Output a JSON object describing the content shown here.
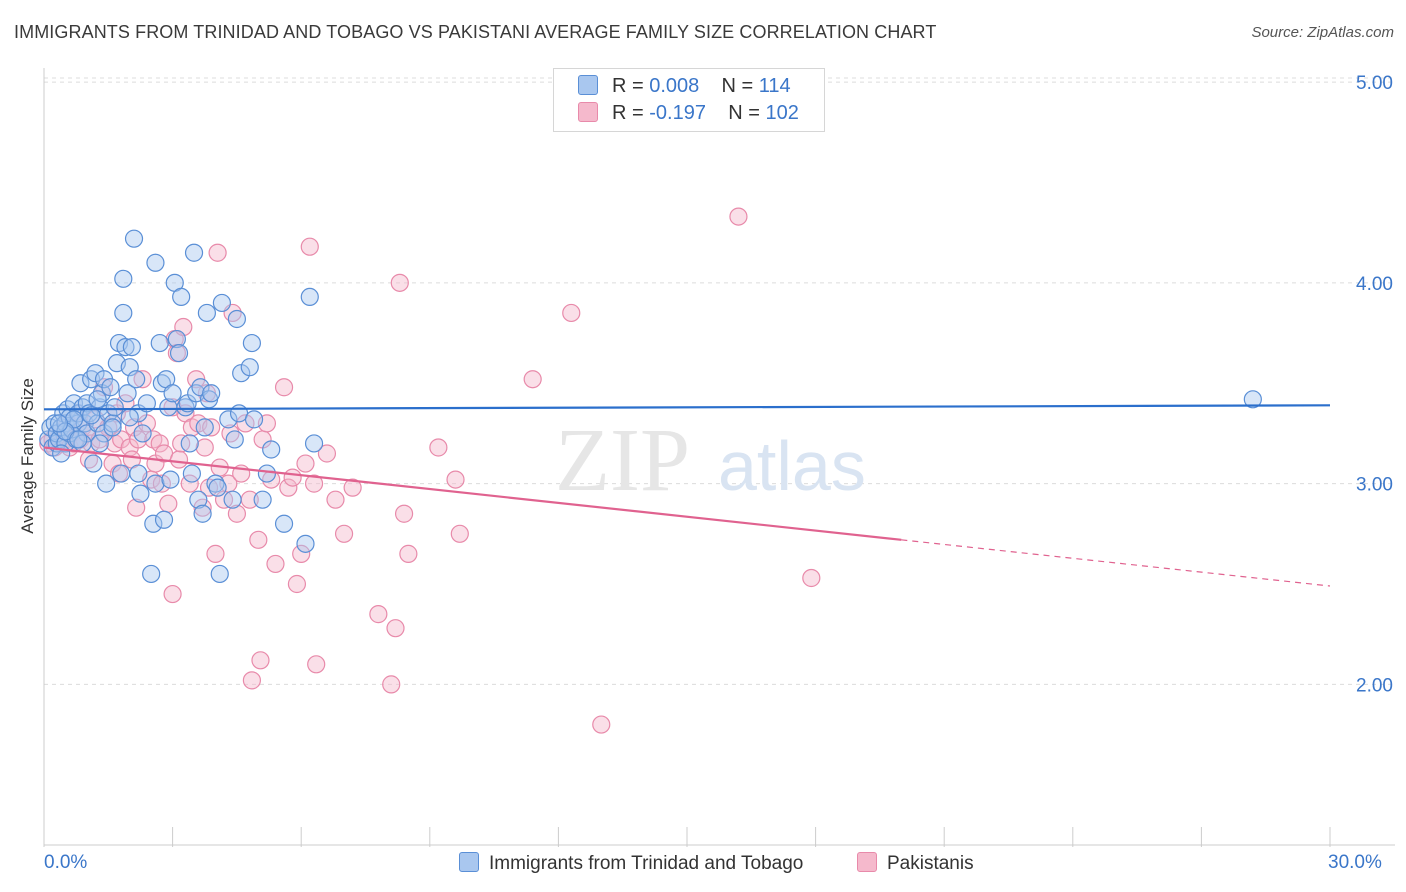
{
  "header": {
    "title": "IMMIGRANTS FROM TRINIDAD AND TOBAGO VS PAKISTANI AVERAGE FAMILY SIZE CORRELATION CHART",
    "source": "Source: ZipAtlas.com"
  },
  "legend": {
    "rows": [
      {
        "r_label": "R =",
        "r_value": "0.008",
        "n_label": "N =",
        "n_value": "114"
      },
      {
        "r_label": "R =",
        "r_value": "-0.197",
        "n_label": "N =",
        "n_value": "102"
      }
    ]
  },
  "watermark": {
    "zip": "ZIP",
    "atlas": "atlas"
  },
  "colors": {
    "blue_fill": "#a9c7ef",
    "blue_stroke": "#5a8fd6",
    "blue_line": "#2b6fcc",
    "pink_fill": "#f5b9cc",
    "pink_stroke": "#e88aaa",
    "pink_line": "#e0628f",
    "axis_text": "#3a76c9",
    "grid": "#dcdcdc"
  },
  "chart_data": {
    "type": "scatter",
    "title": "IMMIGRANTS FROM TRINIDAD AND TOBAGO VS PAKISTANI AVERAGE FAMILY SIZE CORRELATION CHART",
    "xlabel": "",
    "ylabel": "Average Family Size",
    "xlim": [
      0,
      30
    ],
    "ylim": [
      1.2,
      5.1
    ],
    "x_tick_labels": [
      "0.0%",
      "30.0%"
    ],
    "y_ticks": [
      2.0,
      3.0,
      4.0,
      5.0
    ],
    "y_tick_labels": [
      "2.00",
      "3.00",
      "4.00",
      "5.00"
    ],
    "grid": true,
    "legend_position": "top-center",
    "series": [
      {
        "name": "Immigrants from Trinidad and Tobago",
        "color": "#5a8fd6",
        "trend": {
          "x": [
            0,
            30
          ],
          "y": [
            3.37,
            3.39
          ]
        },
        "points": [
          [
            0.1,
            3.22
          ],
          [
            0.15,
            3.28
          ],
          [
            0.2,
            3.18
          ],
          [
            0.25,
            3.3
          ],
          [
            0.3,
            3.2
          ],
          [
            0.3,
            3.25
          ],
          [
            0.35,
            3.22
          ],
          [
            0.4,
            3.28
          ],
          [
            0.45,
            3.35
          ],
          [
            0.5,
            3.2
          ],
          [
            0.5,
            3.3
          ],
          [
            0.55,
            3.37
          ],
          [
            0.6,
            3.25
          ],
          [
            0.6,
            3.33
          ],
          [
            0.65,
            3.27
          ],
          [
            0.7,
            3.4
          ],
          [
            0.75,
            3.22
          ],
          [
            0.8,
            3.3
          ],
          [
            0.8,
            3.35
          ],
          [
            0.85,
            3.5
          ],
          [
            0.9,
            3.38
          ],
          [
            0.95,
            3.3
          ],
          [
            1.0,
            3.4
          ],
          [
            1.0,
            3.25
          ],
          [
            1.05,
            3.35
          ],
          [
            1.1,
            3.52
          ],
          [
            1.15,
            3.1
          ],
          [
            1.2,
            3.55
          ],
          [
            1.25,
            3.3
          ],
          [
            1.3,
            3.38
          ],
          [
            1.35,
            3.45
          ],
          [
            1.4,
            3.52
          ],
          [
            1.4,
            3.25
          ],
          [
            1.45,
            3.0
          ],
          [
            1.5,
            3.35
          ],
          [
            1.55,
            3.48
          ],
          [
            1.6,
            3.3
          ],
          [
            1.65,
            3.38
          ],
          [
            1.7,
            3.6
          ],
          [
            1.75,
            3.7
          ],
          [
            1.8,
            3.05
          ],
          [
            1.85,
            3.85
          ],
          [
            1.85,
            4.02
          ],
          [
            1.9,
            3.68
          ],
          [
            1.95,
            3.45
          ],
          [
            2.0,
            3.58
          ],
          [
            2.05,
            3.68
          ],
          [
            2.1,
            4.22
          ],
          [
            2.15,
            3.52
          ],
          [
            2.2,
            3.35
          ],
          [
            2.25,
            2.95
          ],
          [
            2.3,
            3.25
          ],
          [
            2.4,
            3.4
          ],
          [
            2.5,
            2.55
          ],
          [
            2.55,
            2.8
          ],
          [
            2.6,
            3.0
          ],
          [
            2.6,
            4.1
          ],
          [
            2.7,
            3.7
          ],
          [
            2.75,
            3.5
          ],
          [
            2.8,
            2.82
          ],
          [
            2.85,
            3.52
          ],
          [
            2.9,
            3.38
          ],
          [
            2.95,
            3.02
          ],
          [
            3.0,
            3.45
          ],
          [
            3.05,
            4.0
          ],
          [
            3.1,
            3.72
          ],
          [
            3.15,
            3.65
          ],
          [
            3.2,
            3.93
          ],
          [
            3.3,
            3.38
          ],
          [
            3.35,
            3.4
          ],
          [
            3.4,
            3.2
          ],
          [
            3.45,
            3.05
          ],
          [
            3.5,
            4.15
          ],
          [
            3.55,
            3.45
          ],
          [
            3.6,
            2.92
          ],
          [
            3.65,
            3.48
          ],
          [
            3.7,
            2.85
          ],
          [
            3.75,
            3.28
          ],
          [
            3.8,
            3.85
          ],
          [
            3.85,
            3.42
          ],
          [
            3.9,
            3.45
          ],
          [
            4.0,
            3.0
          ],
          [
            4.05,
            2.98
          ],
          [
            4.1,
            2.55
          ],
          [
            4.15,
            3.9
          ],
          [
            4.3,
            3.32
          ],
          [
            4.4,
            2.92
          ],
          [
            4.45,
            3.22
          ],
          [
            4.5,
            3.82
          ],
          [
            4.55,
            3.35
          ],
          [
            4.6,
            3.55
          ],
          [
            4.8,
            3.58
          ],
          [
            4.85,
            3.7
          ],
          [
            4.9,
            3.32
          ],
          [
            5.1,
            2.92
          ],
          [
            5.2,
            3.05
          ],
          [
            5.3,
            3.17
          ],
          [
            5.6,
            2.8
          ],
          [
            6.1,
            2.7
          ],
          [
            6.2,
            3.93
          ],
          [
            6.3,
            3.2
          ],
          [
            28.2,
            3.42
          ],
          [
            0.4,
            3.15
          ],
          [
            0.7,
            3.32
          ],
          [
            1.25,
            3.42
          ],
          [
            0.5,
            3.26
          ],
          [
            1.1,
            3.34
          ],
          [
            2.0,
            3.33
          ],
          [
            0.9,
            3.2
          ],
          [
            1.6,
            3.28
          ],
          [
            0.35,
            3.3
          ],
          [
            2.2,
            3.05
          ],
          [
            1.3,
            3.2
          ],
          [
            0.8,
            3.22
          ]
        ]
      },
      {
        "name": "Pakistanis",
        "color": "#e88aaa",
        "trend": {
          "x": [
            0,
            20
          ],
          "y": [
            3.18,
            2.72
          ]
        },
        "trend_dashed": {
          "x": [
            20,
            30
          ],
          "y": [
            2.72,
            2.49
          ]
        },
        "points": [
          [
            0.1,
            3.2
          ],
          [
            0.2,
            3.22
          ],
          [
            0.25,
            3.18
          ],
          [
            0.3,
            3.25
          ],
          [
            0.4,
            3.2
          ],
          [
            0.5,
            3.22
          ],
          [
            0.55,
            3.3
          ],
          [
            0.6,
            3.18
          ],
          [
            0.65,
            3.25
          ],
          [
            0.7,
            3.2
          ],
          [
            0.8,
            3.35
          ],
          [
            0.85,
            3.22
          ],
          [
            0.9,
            3.28
          ],
          [
            1.0,
            3.25
          ],
          [
            1.05,
            3.12
          ],
          [
            1.1,
            3.2
          ],
          [
            1.2,
            3.32
          ],
          [
            1.3,
            3.22
          ],
          [
            1.4,
            3.48
          ],
          [
            1.5,
            3.28
          ],
          [
            1.6,
            3.1
          ],
          [
            1.65,
            3.2
          ],
          [
            1.7,
            3.35
          ],
          [
            1.75,
            3.05
          ],
          [
            1.8,
            3.22
          ],
          [
            1.9,
            3.4
          ],
          [
            2.0,
            3.18
          ],
          [
            2.05,
            3.12
          ],
          [
            2.1,
            3.28
          ],
          [
            2.15,
            2.88
          ],
          [
            2.2,
            3.22
          ],
          [
            2.3,
            3.52
          ],
          [
            2.4,
            3.3
          ],
          [
            2.5,
            3.02
          ],
          [
            2.55,
            3.22
          ],
          [
            2.6,
            3.1
          ],
          [
            2.7,
            3.2
          ],
          [
            2.75,
            3.0
          ],
          [
            2.8,
            3.15
          ],
          [
            2.9,
            2.9
          ],
          [
            3.0,
            3.38
          ],
          [
            3.05,
            3.72
          ],
          [
            3.1,
            3.65
          ],
          [
            3.15,
            3.12
          ],
          [
            3.2,
            3.2
          ],
          [
            3.25,
            3.78
          ],
          [
            3.3,
            3.35
          ],
          [
            3.4,
            3.0
          ],
          [
            3.45,
            3.28
          ],
          [
            3.55,
            3.52
          ],
          [
            3.6,
            3.3
          ],
          [
            3.7,
            2.88
          ],
          [
            3.75,
            3.18
          ],
          [
            3.8,
            3.45
          ],
          [
            3.85,
            2.98
          ],
          [
            3.9,
            3.28
          ],
          [
            4.0,
            2.65
          ],
          [
            4.05,
            4.15
          ],
          [
            4.1,
            3.08
          ],
          [
            4.2,
            2.92
          ],
          [
            4.3,
            3.0
          ],
          [
            4.35,
            3.25
          ],
          [
            4.4,
            3.85
          ],
          [
            4.5,
            2.85
          ],
          [
            4.6,
            3.05
          ],
          [
            4.7,
            3.3
          ],
          [
            4.8,
            2.92
          ],
          [
            5.0,
            2.72
          ],
          [
            5.1,
            3.22
          ],
          [
            5.2,
            3.3
          ],
          [
            5.3,
            3.02
          ],
          [
            5.4,
            2.6
          ],
          [
            5.6,
            3.48
          ],
          [
            5.7,
            2.98
          ],
          [
            5.8,
            3.03
          ],
          [
            5.9,
            2.5
          ],
          [
            6.0,
            2.65
          ],
          [
            6.1,
            3.1
          ],
          [
            6.2,
            4.18
          ],
          [
            6.3,
            3.0
          ],
          [
            6.6,
            3.15
          ],
          [
            6.8,
            2.92
          ],
          [
            7.0,
            2.75
          ],
          [
            7.2,
            2.98
          ],
          [
            7.8,
            2.35
          ],
          [
            8.2,
            2.28
          ],
          [
            8.3,
            4.0
          ],
          [
            8.4,
            2.85
          ],
          [
            8.5,
            2.65
          ],
          [
            9.2,
            3.18
          ],
          [
            9.6,
            3.02
          ],
          [
            9.7,
            2.75
          ],
          [
            11.4,
            3.52
          ],
          [
            12.3,
            3.85
          ],
          [
            13.0,
            1.8
          ],
          [
            16.2,
            4.33
          ],
          [
            17.9,
            2.53
          ],
          [
            5.05,
            2.12
          ],
          [
            6.35,
            2.1
          ],
          [
            8.1,
            2.0
          ],
          [
            4.85,
            2.02
          ],
          [
            3.0,
            2.45
          ]
        ]
      }
    ]
  },
  "bottom_legend": [
    {
      "label": "Immigrants from Trinidad and Tobago"
    },
    {
      "label": "Pakistanis"
    }
  ],
  "axis": {
    "x_min_label": "0.0%",
    "x_max_label": "30.0%",
    "y_title": "Average Family Size"
  }
}
